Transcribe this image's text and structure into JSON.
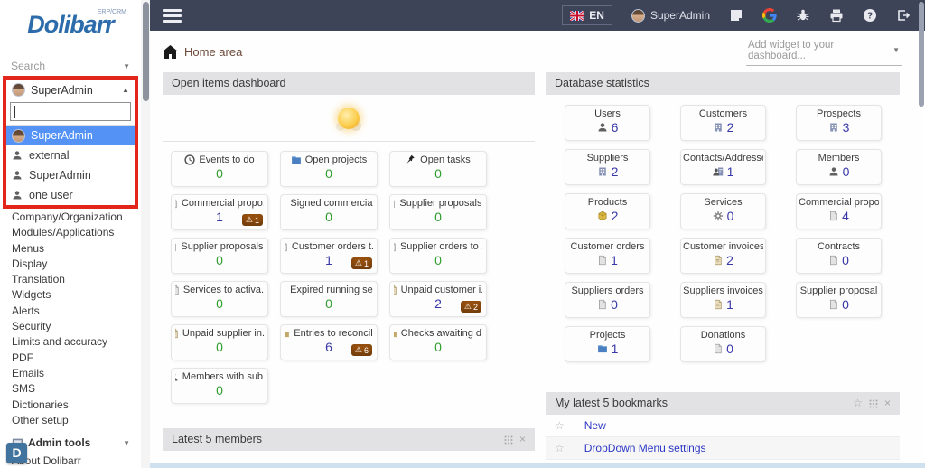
{
  "colors": {
    "topbar_bg": "#3d4457",
    "logo_blue": "#2d6cab",
    "highlight_red": "#e3261b",
    "selected_option_bg": "#5493f5",
    "value_zero": "#2f9e2f",
    "value_nonzero": "#3838a8",
    "warning_badge_bg": "#96500f",
    "link_blue": "#2b36c4",
    "panel_header_bg": "#e2e2e4"
  },
  "sidebar": {
    "logo": "Dolibarr",
    "logo_sup": "ERP/CRM",
    "search_placeholder": "Search",
    "user_select": {
      "selected": "SuperAdmin",
      "options": [
        {
          "label": "SuperAdmin",
          "selected": true,
          "avatar": true
        },
        {
          "label": "external",
          "selected": false,
          "avatar": false
        },
        {
          "label": "SuperAdmin",
          "selected": false,
          "avatar": false
        },
        {
          "label": "one user",
          "selected": false,
          "avatar": false
        }
      ]
    },
    "menu": [
      "Company/Organization",
      "Modules/Applications",
      "Menus",
      "Display",
      "Translation",
      "Widgets",
      "Alerts",
      "Security",
      "Limits and accuracy",
      "PDF",
      "Emails",
      "SMS",
      "Dictionaries",
      "Other setup"
    ],
    "admin_tools_label": "Admin tools",
    "about_label": "About Dolibarr",
    "d_bubble": "D"
  },
  "topbar": {
    "language": "EN",
    "user": "SuperAdmin"
  },
  "header": {
    "title": "Home area",
    "add_widget_placeholder": "Add widget to your dashboard..."
  },
  "open_items": {
    "title": "Open items dashboard",
    "boxes": [
      {
        "label": "Events to do",
        "value": "0",
        "icon": "clock-icon"
      },
      {
        "label": "Open projects",
        "value": "0",
        "icon": "project-icon"
      },
      {
        "label": "Open tasks",
        "value": "0",
        "icon": "pin-icon"
      },
      {
        "label": "Commercial propo...",
        "value": "1",
        "icon": "document-icon",
        "warning": "1"
      },
      {
        "label": "Signed commercia...",
        "value": "0",
        "icon": "document-icon"
      },
      {
        "label": "Supplier proposals...",
        "value": "0",
        "icon": "document-icon"
      },
      {
        "label": "Supplier proposals...",
        "value": "0",
        "icon": "document-icon"
      },
      {
        "label": "Customer orders t...",
        "value": "1",
        "icon": "document-icon",
        "warning": "1"
      },
      {
        "label": "Supplier orders to ...",
        "value": "0",
        "icon": "document-icon"
      },
      {
        "label": "Services to activa...",
        "value": "0",
        "icon": "document-icon"
      },
      {
        "label": "Expired running se...",
        "value": "0",
        "icon": "document-icon"
      },
      {
        "label": "Unpaid customer i...",
        "value": "2",
        "icon": "invoice-icon",
        "warning": "2"
      },
      {
        "label": "Unpaid supplier in...",
        "value": "0",
        "icon": "invoice-icon"
      },
      {
        "label": "Entries to reconcile",
        "value": "6",
        "icon": "bank-icon",
        "warning": "6"
      },
      {
        "label": "Checks awaiting d...",
        "value": "0",
        "icon": "bank-icon"
      },
      {
        "label": "Members with sub...",
        "value": "0",
        "icon": "person-icon"
      }
    ]
  },
  "db_stats": {
    "title": "Database statistics",
    "boxes": [
      {
        "label": "Users",
        "value": "6",
        "icon": "person-icon"
      },
      {
        "label": "Customers",
        "value": "2",
        "icon": "company-icon"
      },
      {
        "label": "Prospects",
        "value": "3",
        "icon": "company-icon"
      },
      {
        "label": "Suppliers",
        "value": "2",
        "icon": "company-icon"
      },
      {
        "label": "Contacts/Addresses",
        "value": "1",
        "icon": "contact-icon"
      },
      {
        "label": "Members",
        "value": "0",
        "icon": "person-icon"
      },
      {
        "label": "Products",
        "value": "2",
        "icon": "product-icon"
      },
      {
        "label": "Services",
        "value": "0",
        "icon": "service-icon"
      },
      {
        "label": "Commercial propo...",
        "value": "4",
        "icon": "document-icon"
      },
      {
        "label": "Customer orders",
        "value": "1",
        "icon": "document-icon"
      },
      {
        "label": "Customer invoices",
        "value": "2",
        "icon": "invoice-icon"
      },
      {
        "label": "Contracts",
        "value": "0",
        "icon": "document-icon"
      },
      {
        "label": "Suppliers orders",
        "value": "0",
        "icon": "document-icon"
      },
      {
        "label": "Suppliers invoices",
        "value": "1",
        "icon": "invoice-icon"
      },
      {
        "label": "Supplier proposal",
        "value": "0",
        "icon": "document-icon"
      },
      {
        "label": "Projects",
        "value": "1",
        "icon": "project-icon"
      },
      {
        "label": "Donations",
        "value": "0",
        "icon": "document-icon"
      }
    ]
  },
  "bookmarks": {
    "title": "My latest 5 bookmarks",
    "items": [
      "New",
      "DropDown Menu settings"
    ]
  },
  "members_panel": {
    "title": "Latest 5 members"
  }
}
